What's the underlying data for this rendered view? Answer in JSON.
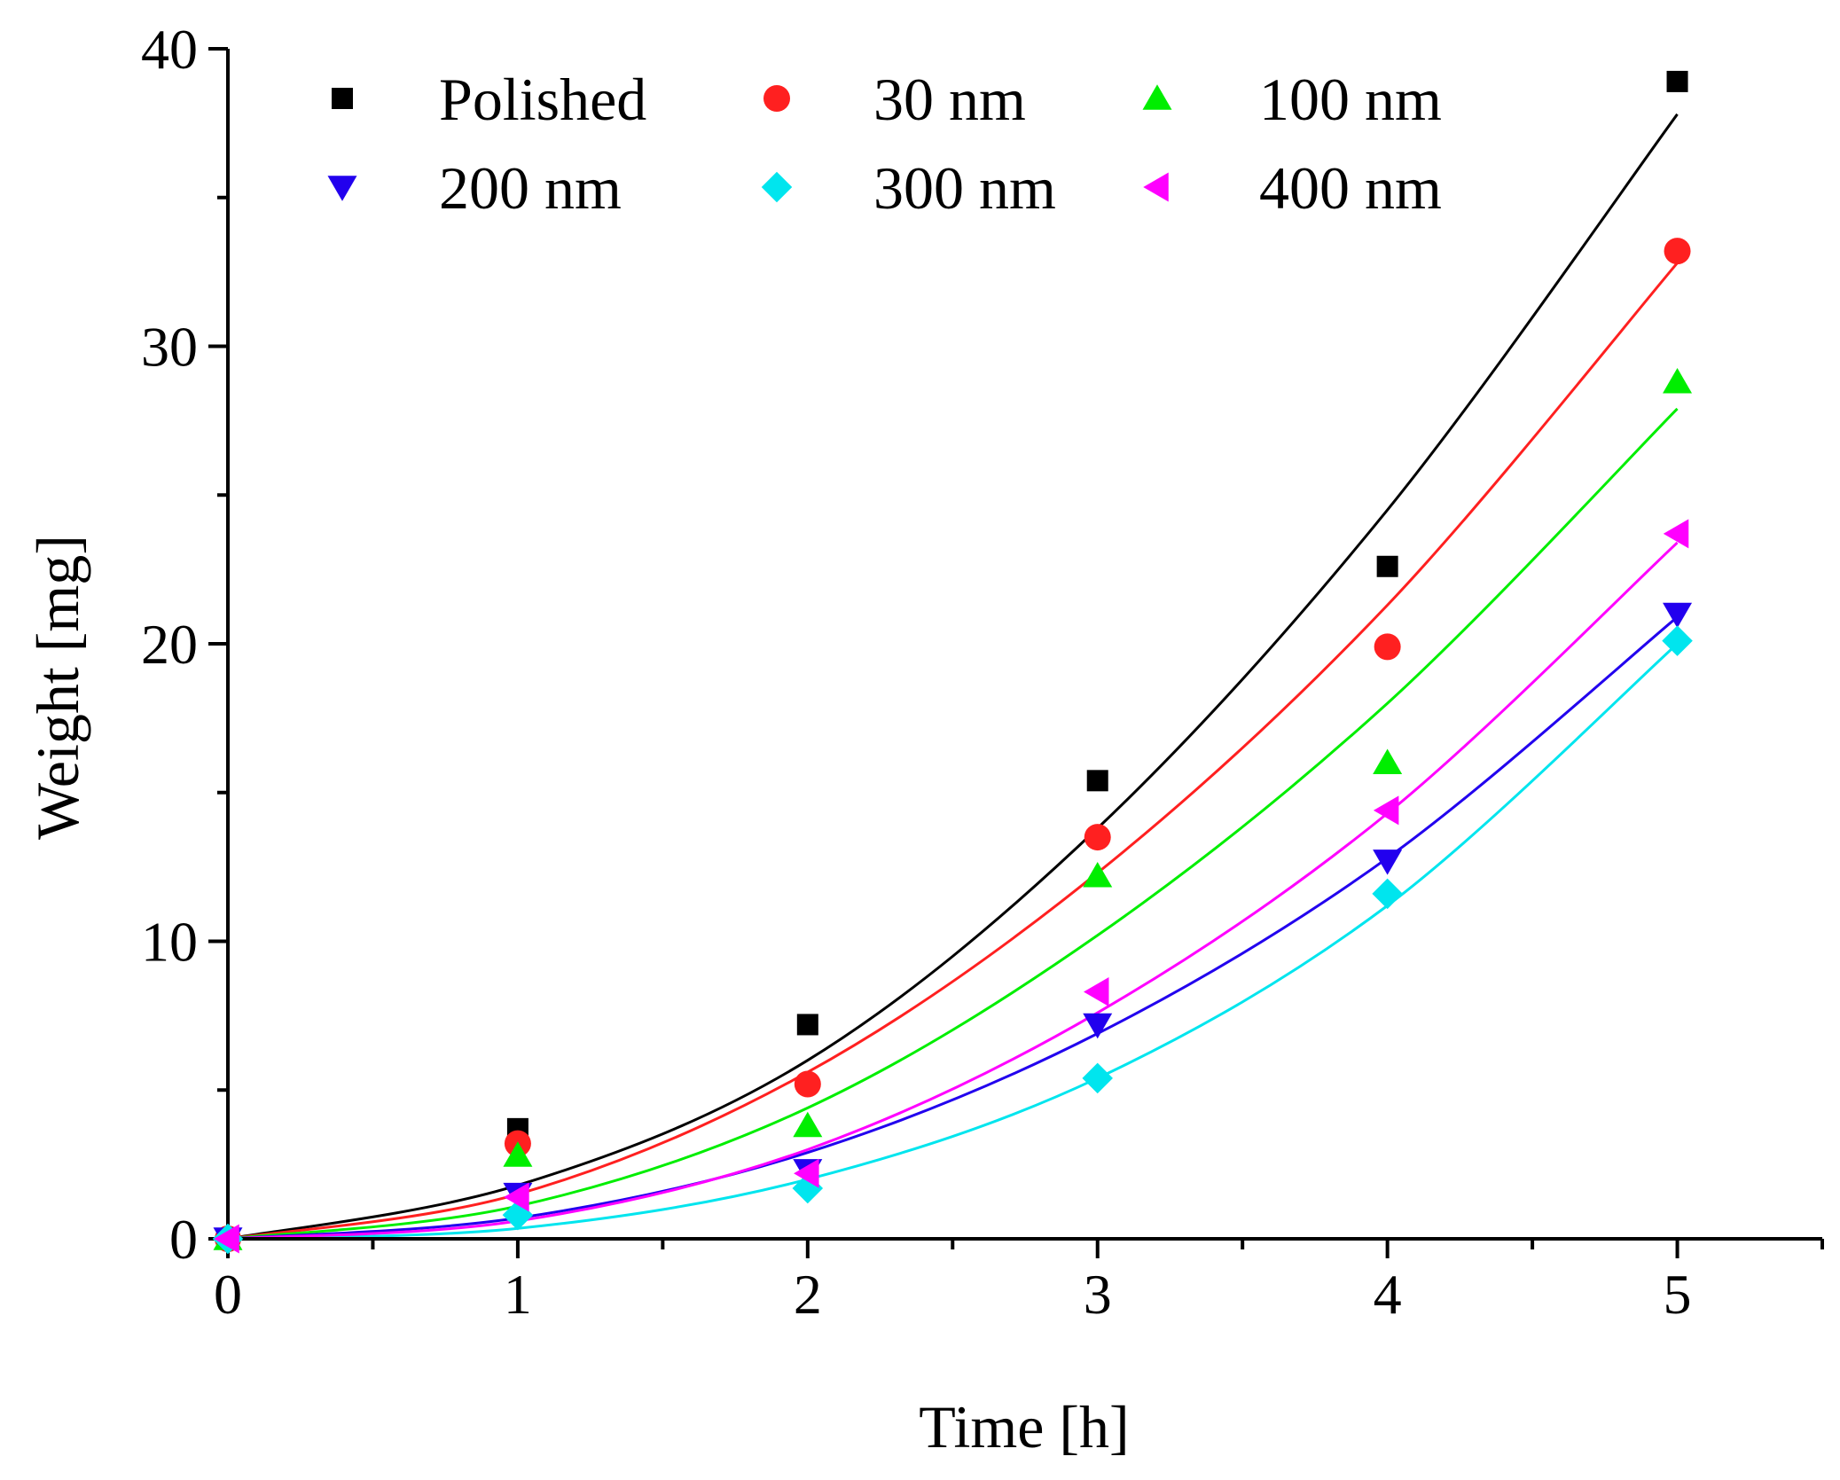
{
  "chart_data": {
    "type": "scatter",
    "title": "",
    "xlabel": "Time [h]",
    "ylabel": "Weight [mg]",
    "xlim": [
      0,
      5.5
    ],
    "ylim": [
      0,
      40
    ],
    "xticks": [
      0,
      1,
      2,
      3,
      4,
      5
    ],
    "xtick_labels": [
      "0",
      "1",
      "2",
      "3",
      "4",
      "5"
    ],
    "xminor": [
      0.5,
      1.5,
      2.5,
      3.5,
      4.5,
      5.5
    ],
    "yticks": [
      0,
      10,
      20,
      30,
      40
    ],
    "ytick_labels": [
      "0",
      "10",
      "20",
      "30",
      "40"
    ],
    "yminor": [
      5,
      15,
      25,
      35
    ],
    "grid": false,
    "legend_position": "top-left",
    "x": [
      0,
      1,
      2,
      3,
      4,
      5
    ],
    "series": [
      {
        "name": "Polished",
        "marker": "square",
        "color": "#000000",
        "values": [
          0,
          3.7,
          7.2,
          15.4,
          22.6,
          38.9
        ],
        "fit": [
          0,
          1.8,
          6.0,
          13.8,
          24.5,
          37.8
        ]
      },
      {
        "name": "30 nm",
        "marker": "circle",
        "color": "#ff2020",
        "values": [
          0,
          3.2,
          5.2,
          13.5,
          19.9,
          33.2
        ],
        "fit": [
          0,
          1.5,
          5.6,
          12.3,
          21.3,
          32.8
        ]
      },
      {
        "name": "100 nm",
        "marker": "triangle-up",
        "color": "#00ee00",
        "values": [
          0,
          2.8,
          3.8,
          12.2,
          16.0,
          28.8
        ],
        "fit": [
          0,
          1.1,
          4.4,
          10.2,
          18.0,
          27.9
        ]
      },
      {
        "name": "200 nm",
        "marker": "triangle-down",
        "color": "#2200ee",
        "values": [
          0,
          1.5,
          2.3,
          7.2,
          12.7,
          21.0
        ],
        "fit": [
          0,
          0.7,
          2.9,
          6.9,
          12.8,
          20.9
        ]
      },
      {
        "name": "300 nm",
        "marker": "diamond",
        "color": "#00e5ee",
        "values": [
          0,
          0.8,
          1.7,
          5.4,
          11.6,
          20.1
        ],
        "fit": [
          0,
          0.35,
          2.0,
          5.4,
          11.2,
          20.0
        ]
      },
      {
        "name": "400 nm",
        "marker": "triangle-left",
        "color": "#ff00ff",
        "values": [
          0,
          1.4,
          2.2,
          8.3,
          14.4,
          23.7
        ],
        "fit": [
          0,
          0.6,
          3.0,
          7.6,
          14.3,
          23.4
        ]
      }
    ]
  }
}
